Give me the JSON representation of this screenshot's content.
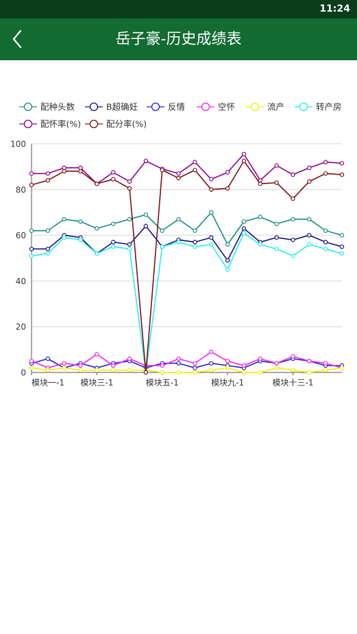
{
  "status_bar": {
    "time": "11:24"
  },
  "header": {
    "title": "岳子豪-历史成绩表",
    "back_icon": "chevron-left-icon"
  },
  "colors": {
    "status_bar": "#0a3d1c",
    "app_bar": "#126b30"
  },
  "chart_data": {
    "type": "line",
    "title": "",
    "xlabel": "",
    "ylabel": "",
    "ylim": [
      0,
      100
    ],
    "yticks": [
      0,
      20,
      40,
      60,
      80,
      100
    ],
    "grid": true,
    "legend_position": "top-left",
    "x_tick_labels": [
      "模块一-1",
      "模块三-1",
      "模块五-1",
      "模块九-1",
      "模块十三-1"
    ],
    "x_tick_indices": [
      0,
      4,
      8,
      12,
      16
    ],
    "series": [
      {
        "name": "配种头数",
        "color": "#1a8a82",
        "values": [
          62,
          62,
          67,
          66,
          63,
          65,
          67,
          69,
          62,
          67,
          62,
          70,
          56,
          66,
          68,
          65,
          67,
          67,
          62,
          60
        ]
      },
      {
        "name": "B超确妊",
        "color": "#12127a",
        "values": [
          54,
          54,
          60,
          59,
          52,
          57,
          56,
          64,
          55,
          58,
          57,
          59,
          49,
          63,
          57,
          59,
          58,
          60,
          57,
          55
        ]
      },
      {
        "name": "反情",
        "color": "#2222cc",
        "values": [
          4,
          6,
          2,
          4,
          2,
          4,
          5,
          2,
          4,
          4,
          2,
          4,
          3,
          2,
          5,
          4,
          6,
          5,
          3,
          3
        ]
      },
      {
        "name": "空怀",
        "color": "#ee22ee",
        "values": [
          5,
          2,
          4,
          3,
          8,
          3,
          6,
          3,
          3,
          6,
          4,
          9,
          5,
          3,
          6,
          4,
          7,
          5,
          4,
          2
        ]
      },
      {
        "name": "流产",
        "color": "#eeee00",
        "values": [
          2,
          1,
          2,
          1,
          1,
          1,
          1,
          1,
          0,
          0,
          0,
          1,
          2,
          0,
          0,
          2,
          1,
          0,
          1,
          2
        ]
      },
      {
        "name": "转产房",
        "color": "#22eeee",
        "values": [
          51,
          52,
          59,
          58,
          52,
          55,
          54,
          0,
          55,
          57,
          55,
          56,
          45,
          61,
          56,
          54,
          51,
          56,
          54,
          52
        ]
      },
      {
        "name": "配怀率(%)",
        "color": "#880088",
        "values": [
          87,
          87,
          89.5,
          89.5,
          82.5,
          87.5,
          83.5,
          92.5,
          89,
          87,
          92,
          84.5,
          87.5,
          95.5,
          84,
          90.5,
          86.5,
          89.5,
          92,
          91.5
        ]
      },
      {
        "name": "配分率(%)",
        "color": "#7a1010",
        "values": [
          82,
          84,
          88,
          88,
          82.5,
          84.5,
          80.5,
          0,
          88.5,
          85,
          88.5,
          80,
          80.5,
          92.5,
          82.5,
          83,
          76,
          83.5,
          87,
          86.5
        ]
      }
    ]
  }
}
